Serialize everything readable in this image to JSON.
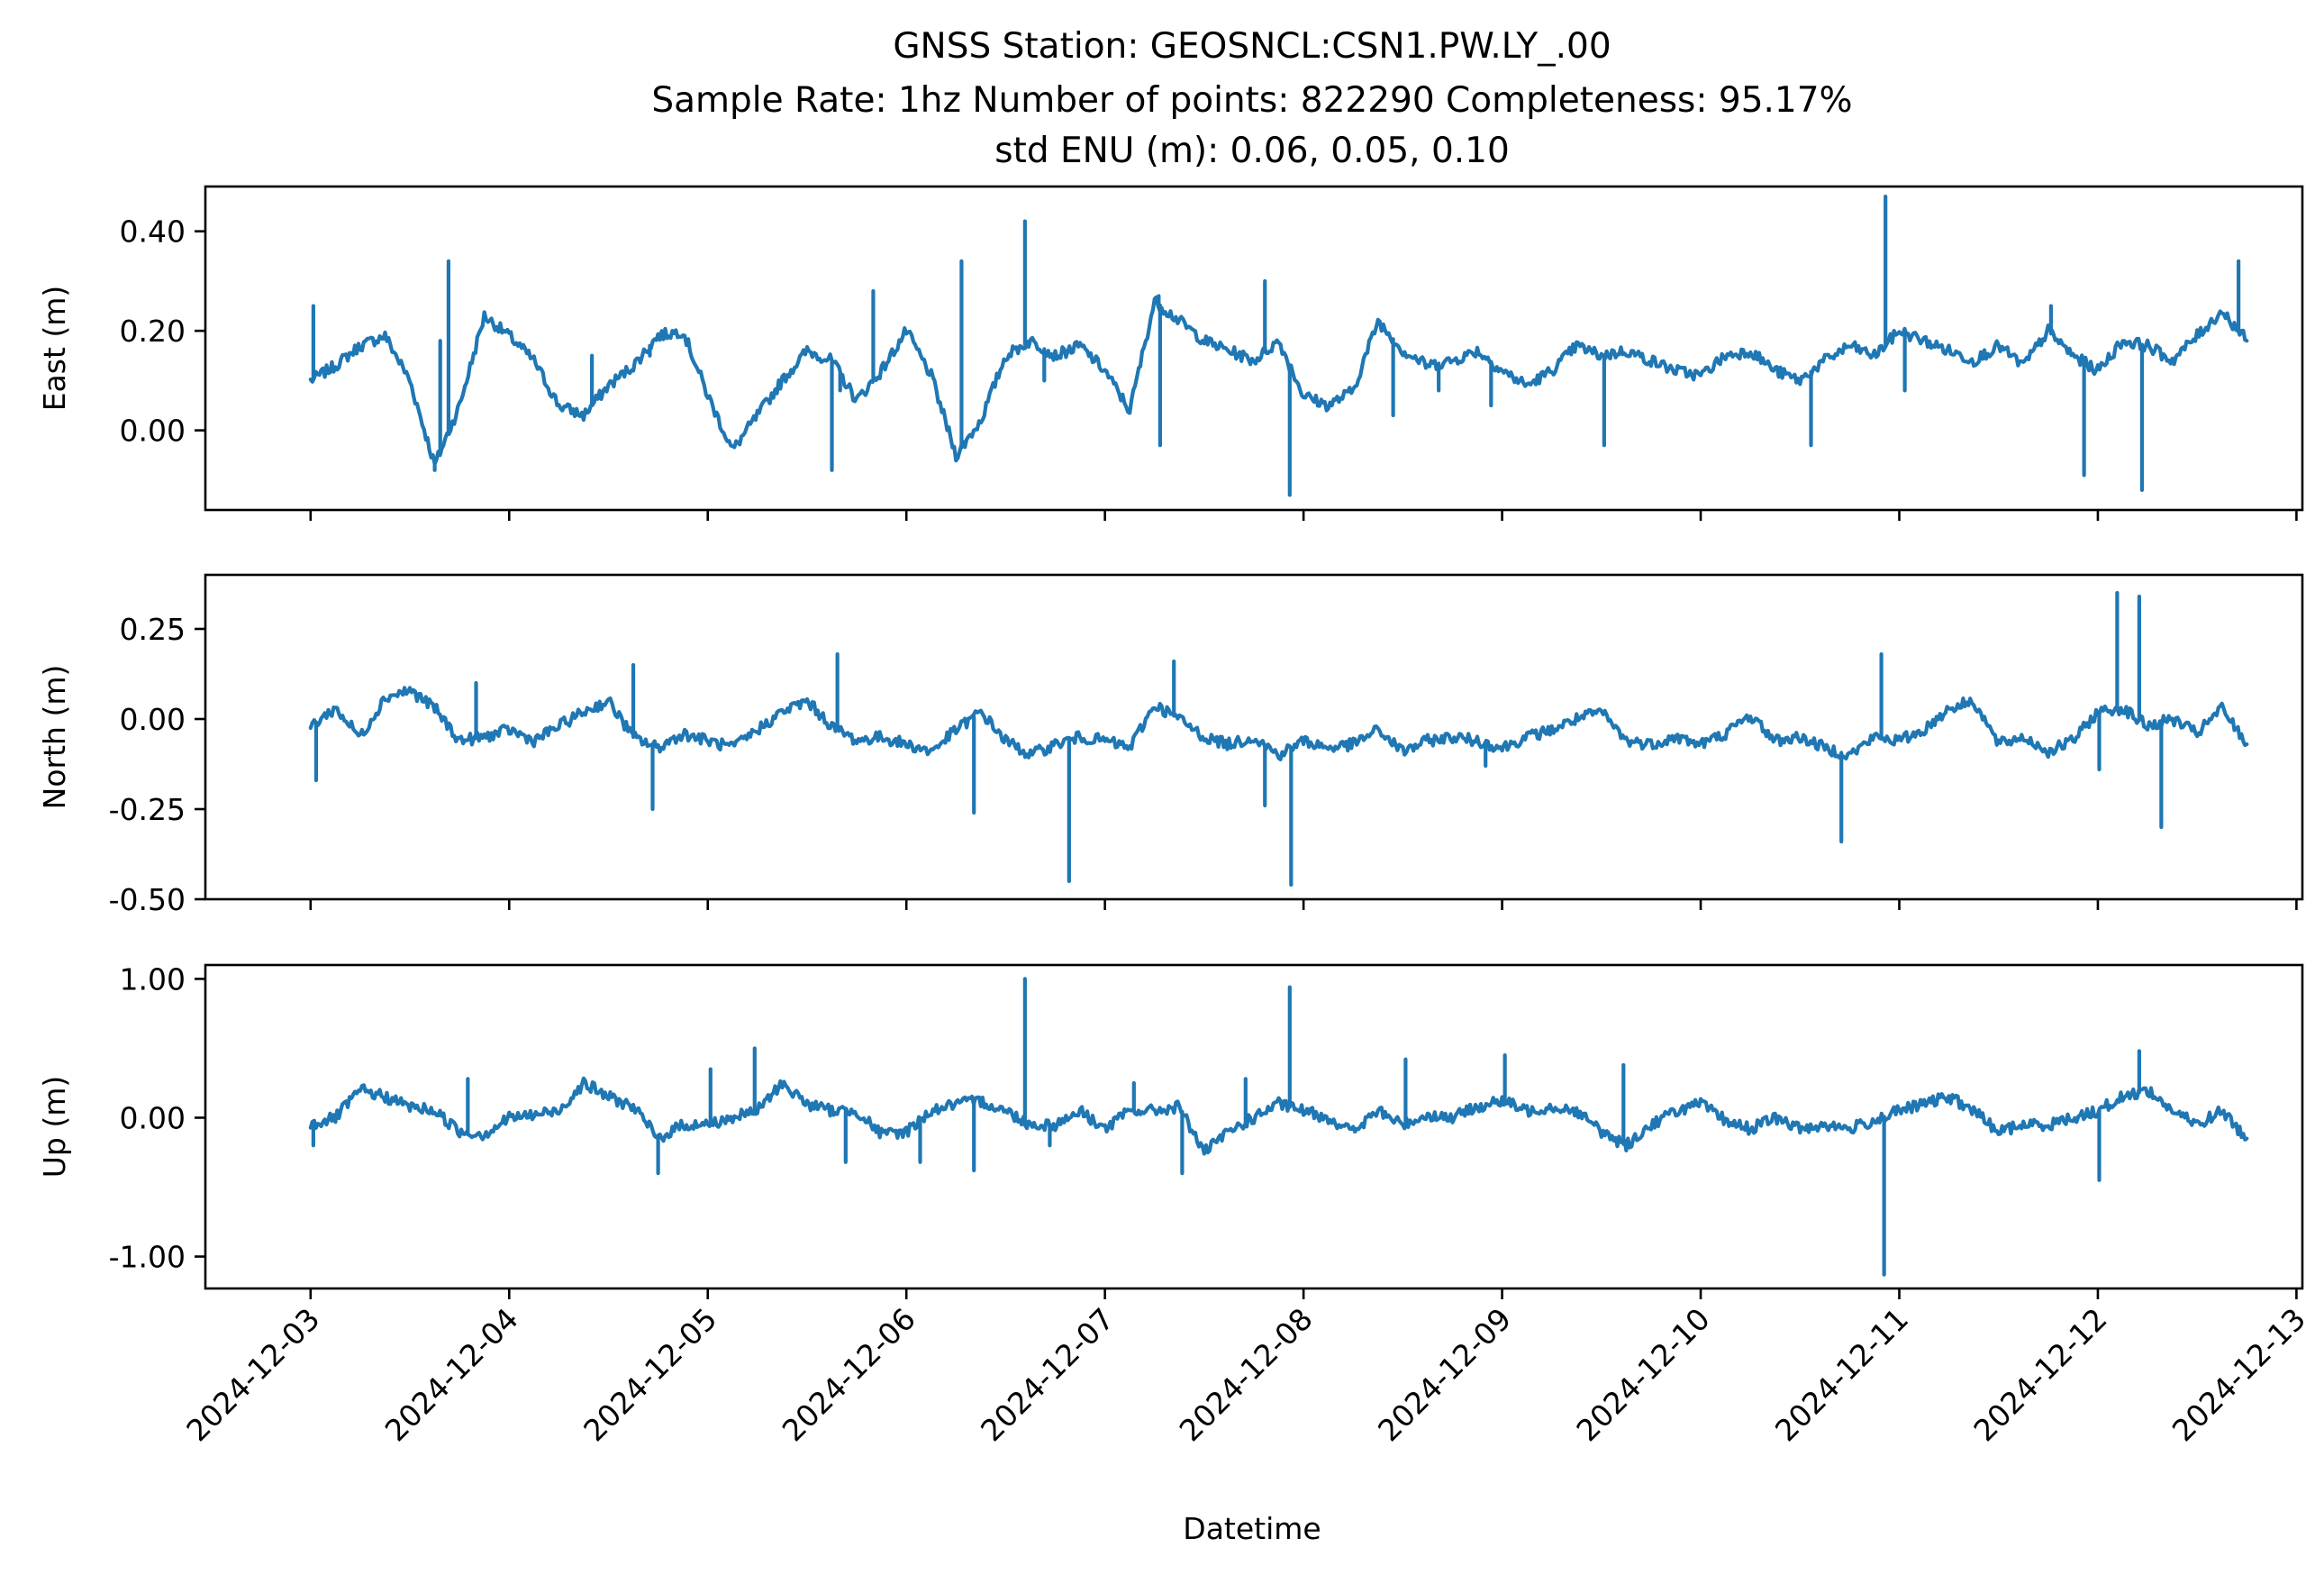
{
  "figure": {
    "title_lines": [
      "GNSS Station: GEOSNCL:CSN1.PW.LY_.00",
      "Sample Rate: 1hz   Number of points: 822290    Completeness:  95.17%",
      "std ENU (m):  0.06, 0.05, 0.10"
    ],
    "xlabel": "Datetime",
    "line_color": "#1f77b4"
  },
  "chart_data": [
    {
      "type": "line",
      "name": "east",
      "ylabel": "East (m)",
      "ylim": [
        -0.16,
        0.49
      ],
      "yticks": [
        0.0,
        0.2,
        0.4
      ],
      "ytick_labels": [
        "0.00",
        "0.20",
        "0.40"
      ],
      "x_range": [
        "2024-12-03",
        "2024-12-12 18:00"
      ],
      "x": [
        "2024-12-03 00:00",
        "2024-12-03 03:00",
        "2024-12-03 06:00",
        "2024-12-03 09:00",
        "2024-12-03 12:00",
        "2024-12-03 15:00",
        "2024-12-03 18:00",
        "2024-12-03 21:00",
        "2024-12-04 00:00",
        "2024-12-04 03:00",
        "2024-12-04 06:00",
        "2024-12-04 09:00",
        "2024-12-04 12:00",
        "2024-12-04 15:00",
        "2024-12-04 18:00",
        "2024-12-04 21:00",
        "2024-12-05 00:00",
        "2024-12-05 03:00",
        "2024-12-05 06:00",
        "2024-12-05 09:00",
        "2024-12-05 12:00",
        "2024-12-05 15:00",
        "2024-12-05 18:00",
        "2024-12-05 21:00",
        "2024-12-06 00:00",
        "2024-12-06 03:00",
        "2024-12-06 06:00",
        "2024-12-06 09:00",
        "2024-12-06 12:00",
        "2024-12-06 15:00",
        "2024-12-06 18:00",
        "2024-12-06 21:00",
        "2024-12-07 00:00",
        "2024-12-07 03:00",
        "2024-12-07 06:00",
        "2024-12-07 09:00",
        "2024-12-07 12:00",
        "2024-12-07 15:00",
        "2024-12-07 18:00",
        "2024-12-07 21:00",
        "2024-12-08 00:00",
        "2024-12-08 03:00",
        "2024-12-08 06:00",
        "2024-12-08 09:00",
        "2024-12-08 12:00",
        "2024-12-08 15:00",
        "2024-12-08 18:00",
        "2024-12-08 21:00",
        "2024-12-09 00:00",
        "2024-12-09 03:00",
        "2024-12-09 06:00",
        "2024-12-09 09:00",
        "2024-12-09 12:00",
        "2024-12-09 15:00",
        "2024-12-09 18:00",
        "2024-12-09 21:00",
        "2024-12-10 00:00",
        "2024-12-10 03:00",
        "2024-12-10 06:00",
        "2024-12-10 09:00",
        "2024-12-10 12:00",
        "2024-12-10 15:00",
        "2024-12-10 18:00",
        "2024-12-10 21:00",
        "2024-12-11 00:00",
        "2024-12-11 03:00",
        "2024-12-11 06:00",
        "2024-12-11 09:00",
        "2024-12-11 12:00",
        "2024-12-11 15:00",
        "2024-12-11 18:00",
        "2024-12-11 21:00",
        "2024-12-12 00:00",
        "2024-12-12 03:00",
        "2024-12-12 06:00",
        "2024-12-12 09:00",
        "2024-12-12 12:00",
        "2024-12-12 15:00",
        "2024-12-12 18:00"
      ],
      "y": [
        0.1,
        0.13,
        0.17,
        0.19,
        0.1,
        -0.07,
        0.05,
        0.23,
        0.19,
        0.14,
        0.05,
        0.03,
        0.09,
        0.13,
        0.19,
        0.2,
        0.07,
        -0.04,
        0.03,
        0.1,
        0.16,
        0.14,
        0.06,
        0.12,
        0.2,
        0.11,
        -0.05,
        0.02,
        0.15,
        0.18,
        0.15,
        0.17,
        0.12,
        0.04,
        0.26,
        0.22,
        0.18,
        0.16,
        0.14,
        0.18,
        0.07,
        0.05,
        0.08,
        0.22,
        0.16,
        0.13,
        0.14,
        0.16,
        0.12,
        0.09,
        0.12,
        0.17,
        0.15,
        0.16,
        0.14,
        0.12,
        0.11,
        0.15,
        0.16,
        0.12,
        0.1,
        0.14,
        0.17,
        0.15,
        0.2,
        0.18,
        0.16,
        0.14,
        0.17,
        0.13,
        0.2,
        0.15,
        0.12,
        0.18,
        0.17,
        0.14,
        0.19,
        0.24,
        0.18
      ],
      "spikes": [
        {
          "x": "2024-12-03 00:20",
          "y": 0.25
        },
        {
          "x": "2024-12-03 15:00",
          "y": -0.08
        },
        {
          "x": "2024-12-03 15:40",
          "y": 0.18
        },
        {
          "x": "2024-12-03 16:40",
          "y": 0.34
        },
        {
          "x": "2024-12-04 10:00",
          "y": 0.15
        },
        {
          "x": "2024-12-04 17:00",
          "y": 0.15
        },
        {
          "x": "2024-12-05 15:00",
          "y": -0.08
        },
        {
          "x": "2024-12-05 16:00",
          "y": 0.08
        },
        {
          "x": "2024-12-05 20:00",
          "y": 0.28
        },
        {
          "x": "2024-12-06 06:40",
          "y": 0.34
        },
        {
          "x": "2024-12-06 14:20",
          "y": 0.42
        },
        {
          "x": "2024-12-06 16:40",
          "y": 0.1
        },
        {
          "x": "2024-12-07 06:30",
          "y": 0.27
        },
        {
          "x": "2024-12-07 06:40",
          "y": -0.03
        },
        {
          "x": "2024-12-07 19:20",
          "y": 0.3
        },
        {
          "x": "2024-12-07 22:20",
          "y": -0.13
        },
        {
          "x": "2024-12-08 10:50",
          "y": 0.03
        },
        {
          "x": "2024-12-08 16:20",
          "y": 0.08
        },
        {
          "x": "2024-12-08 22:40",
          "y": 0.05
        },
        {
          "x": "2024-12-09 12:20",
          "y": -0.03
        },
        {
          "x": "2024-12-10 13:20",
          "y": -0.03
        },
        {
          "x": "2024-12-10 22:20",
          "y": 0.47
        },
        {
          "x": "2024-12-11 00:40",
          "y": 0.08
        },
        {
          "x": "2024-12-11 18:20",
          "y": 0.25
        },
        {
          "x": "2024-12-11 22:20",
          "y": -0.09
        },
        {
          "x": "2024-12-12 05:20",
          "y": -0.12
        },
        {
          "x": "2024-12-12 17:00",
          "y": 0.34
        }
      ]
    },
    {
      "type": "line",
      "name": "north",
      "ylabel": "North (m)",
      "ylim": [
        -0.5,
        0.4
      ],
      "yticks": [
        -0.5,
        -0.25,
        0.0,
        0.25
      ],
      "ytick_labels": [
        "-0.50",
        "-0.25",
        "0.00",
        "0.25"
      ],
      "x_range": [
        "2024-12-03",
        "2024-12-12 18:00"
      ],
      "x": [
        "2024-12-03 00:00",
        "2024-12-03 03:00",
        "2024-12-03 06:00",
        "2024-12-03 09:00",
        "2024-12-03 12:00",
        "2024-12-03 15:00",
        "2024-12-03 18:00",
        "2024-12-03 21:00",
        "2024-12-04 00:00",
        "2024-12-04 03:00",
        "2024-12-04 06:00",
        "2024-12-04 09:00",
        "2024-12-04 12:00",
        "2024-12-04 15:00",
        "2024-12-04 18:00",
        "2024-12-04 21:00",
        "2024-12-05 00:00",
        "2024-12-05 03:00",
        "2024-12-05 06:00",
        "2024-12-05 09:00",
        "2024-12-05 12:00",
        "2024-12-05 15:00",
        "2024-12-05 18:00",
        "2024-12-05 21:00",
        "2024-12-06 00:00",
        "2024-12-06 03:00",
        "2024-12-06 06:00",
        "2024-12-06 09:00",
        "2024-12-06 12:00",
        "2024-12-06 15:00",
        "2024-12-06 18:00",
        "2024-12-06 21:00",
        "2024-12-07 00:00",
        "2024-12-07 03:00",
        "2024-12-07 06:00",
        "2024-12-07 09:00",
        "2024-12-07 12:00",
        "2024-12-07 15:00",
        "2024-12-07 18:00",
        "2024-12-07 21:00",
        "2024-12-08 00:00",
        "2024-12-08 03:00",
        "2024-12-08 06:00",
        "2024-12-08 09:00",
        "2024-12-08 12:00",
        "2024-12-08 15:00",
        "2024-12-08 18:00",
        "2024-12-08 21:00",
        "2024-12-09 00:00",
        "2024-12-09 03:00",
        "2024-12-09 06:00",
        "2024-12-09 09:00",
        "2024-12-09 12:00",
        "2024-12-09 15:00",
        "2024-12-09 18:00",
        "2024-12-09 21:00",
        "2024-12-10 00:00",
        "2024-12-10 03:00",
        "2024-12-10 06:00",
        "2024-12-10 09:00",
        "2024-12-10 12:00",
        "2024-12-10 15:00",
        "2024-12-10 18:00",
        "2024-12-10 21:00",
        "2024-12-11 00:00",
        "2024-12-11 03:00",
        "2024-12-11 06:00",
        "2024-12-11 09:00",
        "2024-12-11 12:00",
        "2024-12-11 15:00",
        "2024-12-11 18:00",
        "2024-12-11 21:00",
        "2024-12-12 00:00",
        "2024-12-12 03:00",
        "2024-12-12 06:00",
        "2024-12-12 09:00",
        "2024-12-12 12:00",
        "2024-12-12 15:00",
        "2024-12-12 18:00"
      ],
      "y": [
        -0.02,
        0.03,
        -0.05,
        0.06,
        0.08,
        0.03,
        -0.06,
        -0.05,
        -0.03,
        -0.06,
        -0.02,
        0.02,
        0.05,
        -0.05,
        -0.08,
        -0.04,
        -0.06,
        -0.08,
        -0.03,
        0.02,
        0.05,
        -0.02,
        -0.06,
        -0.05,
        -0.07,
        -0.09,
        -0.03,
        0.02,
        -0.06,
        -0.1,
        -0.07,
        -0.05,
        -0.06,
        -0.08,
        0.04,
        0.0,
        -0.05,
        -0.07,
        -0.05,
        -0.1,
        -0.06,
        -0.08,
        -0.07,
        -0.03,
        -0.09,
        -0.06,
        -0.05,
        -0.06,
        -0.08,
        -0.05,
        -0.03,
        0.0,
        0.02,
        -0.06,
        -0.07,
        -0.05,
        -0.07,
        -0.04,
        0.01,
        -0.06,
        -0.05,
        -0.08,
        -0.1,
        -0.05,
        -0.06,
        -0.03,
        0.03,
        0.05,
        -0.07,
        -0.05,
        -0.09,
        -0.06,
        0.02,
        0.03,
        -0.02,
        0.0,
        -0.04,
        0.03,
        -0.07
      ],
      "spikes": [
        {
          "x": "2024-12-03 00:40",
          "y": -0.17
        },
        {
          "x": "2024-12-03 20:00",
          "y": 0.1
        },
        {
          "x": "2024-12-04 15:00",
          "y": 0.15
        },
        {
          "x": "2024-12-04 17:20",
          "y": -0.25
        },
        {
          "x": "2024-12-05 15:40",
          "y": 0.18
        },
        {
          "x": "2024-12-06 08:10",
          "y": -0.26
        },
        {
          "x": "2024-12-06 19:40",
          "y": -0.45
        },
        {
          "x": "2024-12-07 08:20",
          "y": 0.16
        },
        {
          "x": "2024-12-07 19:20",
          "y": -0.24
        },
        {
          "x": "2024-12-07 22:30",
          "y": -0.46
        },
        {
          "x": "2024-12-08 22:00",
          "y": -0.13
        },
        {
          "x": "2024-12-10 17:00",
          "y": -0.34
        },
        {
          "x": "2024-12-10 21:50",
          "y": 0.18
        },
        {
          "x": "2024-12-12 00:10",
          "y": -0.14
        },
        {
          "x": "2024-12-12 02:20",
          "y": 0.35
        },
        {
          "x": "2024-12-12 05:00",
          "y": 0.34
        },
        {
          "x": "2024-12-12 07:40",
          "y": -0.3
        }
      ]
    },
    {
      "type": "line",
      "name": "up",
      "ylabel": "Up (m)",
      "ylim": [
        -1.23,
        1.1
      ],
      "yticks": [
        -1.0,
        0.0,
        1.0
      ],
      "ytick_labels": [
        "-1.00",
        "0.00",
        "1.00"
      ],
      "x_range": [
        "2024-12-03",
        "2024-12-12 18:00"
      ],
      "x": [
        "2024-12-03 00:00",
        "2024-12-03 03:00",
        "2024-12-03 06:00",
        "2024-12-03 09:00",
        "2024-12-03 12:00",
        "2024-12-03 15:00",
        "2024-12-03 18:00",
        "2024-12-03 21:00",
        "2024-12-04 00:00",
        "2024-12-04 03:00",
        "2024-12-04 06:00",
        "2024-12-04 09:00",
        "2024-12-04 12:00",
        "2024-12-04 15:00",
        "2024-12-04 18:00",
        "2024-12-04 21:00",
        "2024-12-05 00:00",
        "2024-12-05 03:00",
        "2024-12-05 06:00",
        "2024-12-05 09:00",
        "2024-12-05 12:00",
        "2024-12-05 15:00",
        "2024-12-05 18:00",
        "2024-12-05 21:00",
        "2024-12-06 00:00",
        "2024-12-06 03:00",
        "2024-12-06 06:00",
        "2024-12-06 09:00",
        "2024-12-06 12:00",
        "2024-12-06 15:00",
        "2024-12-06 18:00",
        "2024-12-06 21:00",
        "2024-12-07 00:00",
        "2024-12-07 03:00",
        "2024-12-07 06:00",
        "2024-12-07 09:00",
        "2024-12-07 12:00",
        "2024-12-07 15:00",
        "2024-12-07 18:00",
        "2024-12-07 21:00",
        "2024-12-08 00:00",
        "2024-12-08 03:00",
        "2024-12-08 06:00",
        "2024-12-08 09:00",
        "2024-12-08 12:00",
        "2024-12-08 15:00",
        "2024-12-08 18:00",
        "2024-12-08 21:00",
        "2024-12-09 00:00",
        "2024-12-09 03:00",
        "2024-12-09 06:00",
        "2024-12-09 09:00",
        "2024-12-09 12:00",
        "2024-12-09 15:00",
        "2024-12-09 18:00",
        "2024-12-09 21:00",
        "2024-12-10 00:00",
        "2024-12-10 03:00",
        "2024-12-10 06:00",
        "2024-12-10 09:00",
        "2024-12-10 12:00",
        "2024-12-10 15:00",
        "2024-12-10 18:00",
        "2024-12-10 21:00",
        "2024-12-11 00:00",
        "2024-12-11 03:00",
        "2024-12-11 06:00",
        "2024-12-11 09:00",
        "2024-12-11 12:00",
        "2024-12-11 15:00",
        "2024-12-11 18:00",
        "2024-12-11 21:00",
        "2024-12-12 00:00",
        "2024-12-12 03:00",
        "2024-12-12 06:00",
        "2024-12-12 09:00",
        "2024-12-12 12:00",
        "2024-12-12 15:00",
        "2024-12-12 18:00"
      ],
      "y": [
        -0.05,
        0.0,
        0.2,
        0.15,
        0.08,
        0.05,
        -0.1,
        -0.12,
        0.0,
        0.02,
        0.05,
        0.25,
        0.15,
        0.08,
        -0.15,
        -0.05,
        -0.05,
        0.0,
        0.05,
        0.25,
        0.1,
        0.05,
        0.05,
        -0.12,
        -0.1,
        0.05,
        0.1,
        0.12,
        0.05,
        -0.05,
        -0.05,
        0.05,
        -0.08,
        0.05,
        0.05,
        0.08,
        -0.25,
        -0.1,
        0.0,
        0.1,
        0.05,
        0.0,
        -0.1,
        0.05,
        -0.05,
        0.02,
        0.0,
        0.08,
        0.12,
        0.05,
        0.08,
        0.05,
        -0.1,
        -0.2,
        -0.05,
        0.05,
        0.1,
        -0.02,
        -0.08,
        0.0,
        -0.08,
        -0.05,
        -0.08,
        -0.02,
        0.05,
        0.1,
        0.15,
        0.05,
        -0.1,
        -0.05,
        -0.05,
        0.0,
        0.05,
        0.15,
        0.2,
        0.05,
        -0.05,
        0.05,
        -0.15
      ],
      "spikes": [
        {
          "x": "2024-12-03 00:20",
          "y": -0.2
        },
        {
          "x": "2024-12-03 19:00",
          "y": 0.28
        },
        {
          "x": "2024-12-04 18:00",
          "y": -0.4
        },
        {
          "x": "2024-12-05 00:20",
          "y": 0.35
        },
        {
          "x": "2024-12-05 05:40",
          "y": 0.5
        },
        {
          "x": "2024-12-05 16:40",
          "y": -0.32
        },
        {
          "x": "2024-12-06 01:40",
          "y": -0.32
        },
        {
          "x": "2024-12-06 08:10",
          "y": -0.38
        },
        {
          "x": "2024-12-06 14:20",
          "y": 1.0
        },
        {
          "x": "2024-12-06 17:20",
          "y": -0.2
        },
        {
          "x": "2024-12-07 03:30",
          "y": 0.25
        },
        {
          "x": "2024-12-07 09:20",
          "y": -0.4
        },
        {
          "x": "2024-12-07 17:00",
          "y": 0.28
        },
        {
          "x": "2024-12-07 22:20",
          "y": 0.94
        },
        {
          "x": "2024-12-08 12:20",
          "y": 0.42
        },
        {
          "x": "2024-12-09 00:20",
          "y": 0.45
        },
        {
          "x": "2024-12-09 14:40",
          "y": 0.38
        },
        {
          "x": "2024-12-10 22:10",
          "y": -1.13
        },
        {
          "x": "2024-12-12 00:10",
          "y": -0.45
        },
        {
          "x": "2024-12-12 05:00",
          "y": 0.48
        }
      ]
    }
  ],
  "xaxis": {
    "tick_dates": [
      "2024-12-03",
      "2024-12-04",
      "2024-12-05",
      "2024-12-06",
      "2024-12-07",
      "2024-12-08",
      "2024-12-09",
      "2024-12-10",
      "2024-12-11",
      "2024-12-12",
      "2024-12-13"
    ],
    "tick_labels": [
      "2024-12-03",
      "2024-12-04",
      "2024-12-05",
      "2024-12-06",
      "2024-12-07",
      "2024-12-08",
      "2024-12-09",
      "2024-12-10",
      "2024-12-11",
      "2024-12-12",
      "2024-12-13"
    ]
  }
}
